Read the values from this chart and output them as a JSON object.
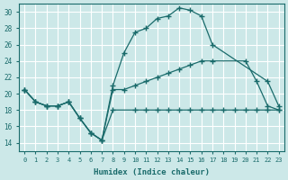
{
  "xlabel": "Humidex (Indice chaleur)",
  "bg_color": "#cce8e8",
  "grid_color": "#ffffff",
  "line_color": "#1a6b6b",
  "xlim": [
    -0.5,
    23.5
  ],
  "ylim": [
    13.0,
    31.0
  ],
  "yticks": [
    14,
    16,
    18,
    20,
    22,
    24,
    26,
    28,
    30
  ],
  "xticks": [
    0,
    1,
    2,
    3,
    4,
    5,
    6,
    7,
    8,
    9,
    10,
    11,
    12,
    13,
    14,
    15,
    16,
    17,
    18,
    19,
    20,
    21,
    22,
    23
  ],
  "line1_x": [
    0,
    1,
    2,
    3,
    4,
    5,
    6,
    7,
    8,
    9,
    10,
    11,
    12,
    13,
    14,
    15,
    16,
    17,
    22,
    23
  ],
  "line1_y": [
    20.5,
    19.0,
    18.5,
    18.5,
    19.0,
    17.0,
    15.2,
    14.3,
    21.0,
    25.0,
    27.5,
    28.0,
    29.2,
    29.5,
    30.5,
    30.2,
    29.5,
    26.0,
    21.5,
    18.5
  ],
  "line2_x": [
    0,
    1,
    2,
    3,
    4,
    5,
    6,
    7,
    8,
    9,
    10,
    11,
    12,
    13,
    14,
    15,
    16,
    17,
    20,
    21,
    22,
    23
  ],
  "line2_y": [
    20.5,
    19.0,
    18.5,
    18.5,
    19.0,
    17.0,
    15.2,
    14.3,
    20.5,
    20.5,
    21.0,
    21.5,
    22.0,
    22.5,
    23.0,
    23.5,
    24.0,
    24.0,
    24.0,
    21.5,
    18.5,
    18.0
  ],
  "line3_x": [
    0,
    1,
    2,
    3,
    4,
    5,
    6,
    7,
    8,
    10,
    11,
    12,
    13,
    14,
    15,
    16,
    17,
    18,
    19,
    20,
    21,
    22,
    23
  ],
  "line3_y": [
    20.5,
    19.0,
    18.5,
    18.5,
    19.0,
    17.0,
    15.2,
    14.3,
    18.0,
    18.0,
    18.0,
    18.0,
    18.0,
    18.0,
    18.0,
    18.0,
    18.0,
    18.0,
    18.0,
    18.0,
    18.0,
    18.0,
    18.0
  ]
}
